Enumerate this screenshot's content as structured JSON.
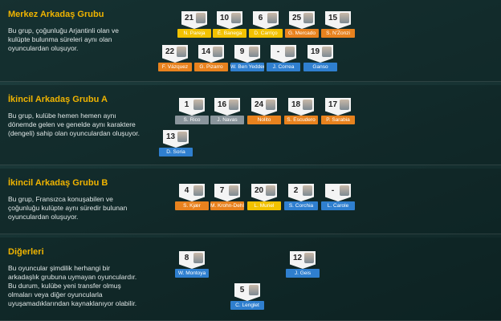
{
  "groups": [
    {
      "title": "Merkez Arkadaş Grubu",
      "description": [
        "Bu grup, çoğunluğu Arjantinli olan ve",
        "kulüpte bulunma süreleri aynı olan",
        "oyunculardan oluşuyor."
      ],
      "players": [
        {
          "number": "21",
          "name": "N. Pareja",
          "color": "#f2c200"
        },
        {
          "number": "10",
          "name": "É. Banega",
          "color": "#f2c200"
        },
        {
          "number": "6",
          "name": "D. Carriço",
          "color": "#f2c200"
        },
        {
          "number": "25",
          "name": "G. Mercado",
          "color": "#e8821e"
        },
        {
          "number": "15",
          "name": "S. N'Zonzi",
          "color": "#e8821e"
        },
        {
          "number": "22",
          "name": "F. Vázquez",
          "color": "#e8821e"
        },
        {
          "number": "14",
          "name": "G. Pizarro",
          "color": "#e8821e"
        },
        {
          "number": "9",
          "name": "W. Ben Yedder",
          "color": "#2f7fcf"
        },
        {
          "number": "-",
          "name": "J. Correa",
          "color": "#2f7fcf"
        },
        {
          "number": "19",
          "name": "Ganso",
          "color": "#2f7fcf"
        }
      ]
    },
    {
      "title": "İkincil Arkadaş Grubu A",
      "description": [
        "Bu grup, kulübe hemen hemen aynı",
        "dönemde gelen ve genelde aynı karaktere",
        "(dengeli) sahip olan oyunculardan oluşuyor."
      ],
      "players": [
        {
          "number": "1",
          "name": "S. Rico",
          "color": "#8a959c"
        },
        {
          "number": "16",
          "name": "J. Navas",
          "color": "#8a959c"
        },
        {
          "number": "24",
          "name": "Nolito",
          "color": "#e8821e"
        },
        {
          "number": "18",
          "name": "S. Escudero",
          "color": "#e8821e"
        },
        {
          "number": "17",
          "name": "P. Sarabia",
          "color": "#e8821e"
        },
        {
          "number": "13",
          "name": "D. Soria",
          "color": "#2f7fcf"
        }
      ]
    },
    {
      "title": "İkincil Arkadaş Grubu B",
      "description": [
        "Bu grup, Fransızca konuşabilen ve",
        "çoğunluğu kulüpte aynı süredir bulunan",
        "oyunculardan oluşuyor."
      ],
      "players": [
        {
          "number": "4",
          "name": "S. Kjær",
          "color": "#e8821e"
        },
        {
          "number": "7",
          "name": "M. Krohn-Dehli",
          "color": "#e8821e"
        },
        {
          "number": "20",
          "name": "L. Muriel",
          "color": "#f2c200"
        },
        {
          "number": "2",
          "name": "S. Corchia",
          "color": "#2f7fcf"
        },
        {
          "number": "-",
          "name": "L. Carole",
          "color": "#2f7fcf"
        }
      ]
    },
    {
      "title": "Diğerleri",
      "description": [
        "Bu oyuncular şimdilik herhangi bir",
        "arkadaşlık grubuna uymayan oyunculardır.",
        "Bu durum, kulübe yeni transfer olmuş",
        "olmaları veya diğer oyuncularla",
        "uyuşamadıklarından kaynaklanıyor olabilir."
      ],
      "players": [
        {
          "number": "8",
          "name": "W. Montoya",
          "color": "#2f7fcf"
        },
        {
          "number": "12",
          "name": "J. Geis",
          "color": "#2f7fcf"
        },
        {
          "number": "5",
          "name": "C. Lenglet",
          "color": "#2f7fcf"
        }
      ]
    }
  ]
}
